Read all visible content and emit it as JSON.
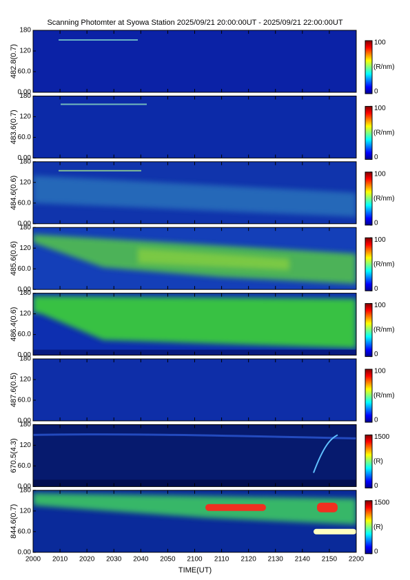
{
  "chart_data": {
    "type": "heatmap",
    "title": "Scanning Photomter at Syowa Station 2025/09/21 20:00:00UT - 2025/09/21 22:00:00UT",
    "xlabel": "TIME(UT)",
    "categories": [
      "2000",
      "2010",
      "2020",
      "2030",
      "2040",
      "2050",
      "2100",
      "2110",
      "2120",
      "2130",
      "2140",
      "2150",
      "2200"
    ],
    "colormap": [
      "#00008f",
      "#0000ff",
      "#0080ff",
      "#00ffff",
      "#80ff80",
      "#ffff00",
      "#ff8000",
      "#ff0000",
      "#800000"
    ],
    "panels": [
      {
        "ylabel": "482.8(0.7)",
        "ylim": [
          0,
          180
        ],
        "yticks": [
          {
            "value": 0,
            "label": "0.00"
          },
          {
            "value": 60,
            "label": "60.0"
          },
          120,
          180
        ],
        "clim": [
          0,
          100
        ],
        "cticks": [
          0,
          100
        ],
        "clabel": "(R/nm)"
      },
      {
        "ylabel": "483.6(0.7)",
        "ylim": [
          0,
          180
        ],
        "yticks": [
          {
            "value": 0,
            "label": "0.00"
          },
          {
            "value": 60,
            "label": "60.0"
          },
          120,
          180
        ],
        "clim": [
          0,
          100
        ],
        "cticks": [
          0,
          100
        ],
        "clabel": "(R/nm)"
      },
      {
        "ylabel": "484.6(0.6)",
        "ylim": [
          0,
          180
        ],
        "yticks": [
          {
            "value": 0,
            "label": "0.00"
          },
          {
            "value": 60,
            "label": "60.0"
          },
          120,
          180
        ],
        "clim": [
          0,
          100
        ],
        "cticks": [
          0,
          100
        ],
        "clabel": "(R/nm)"
      },
      {
        "ylabel": "485.6(0.6)",
        "ylim": [
          0,
          180
        ],
        "yticks": [
          {
            "value": 0,
            "label": "0.00"
          },
          {
            "value": 60,
            "label": "60.0"
          },
          120,
          180
        ],
        "clim": [
          0,
          100
        ],
        "cticks": [
          0,
          100
        ],
        "clabel": "(R/nm)"
      },
      {
        "ylabel": "486.4(0.6)",
        "ylim": [
          0,
          180
        ],
        "yticks": [
          {
            "value": 0,
            "label": "0.00"
          },
          {
            "value": 60,
            "label": "60.0"
          },
          120,
          180
        ],
        "clim": [
          0,
          100
        ],
        "cticks": [
          0,
          100
        ],
        "clabel": "(R/nm)"
      },
      {
        "ylabel": "487.6(0.5)",
        "ylim": [
          0,
          180
        ],
        "yticks": [
          {
            "value": 0,
            "label": "0.00"
          },
          {
            "value": 60,
            "label": "60.0"
          },
          120,
          180
        ],
        "clim": [
          0,
          100
        ],
        "cticks": [
          0,
          100
        ],
        "clabel": "(R/nm)"
      },
      {
        "ylabel": "670.5(4.3)",
        "ylim": [
          0,
          180
        ],
        "yticks": [
          {
            "value": 0,
            "label": "0.00"
          },
          {
            "value": 60,
            "label": "60.0"
          },
          120,
          180
        ],
        "clim": [
          0,
          1500
        ],
        "cticks": [
          0,
          1500
        ],
        "clabel": "(R)"
      },
      {
        "ylabel": "844.6(0.7)",
        "ylim": [
          0,
          180
        ],
        "yticks": [
          {
            "value": 0,
            "label": "0.00"
          },
          {
            "value": 60,
            "label": "60.0"
          },
          120,
          180
        ],
        "clim": [
          0,
          1500
        ],
        "cticks": [
          0,
          1500
        ],
        "clabel": "(R)"
      }
    ]
  }
}
